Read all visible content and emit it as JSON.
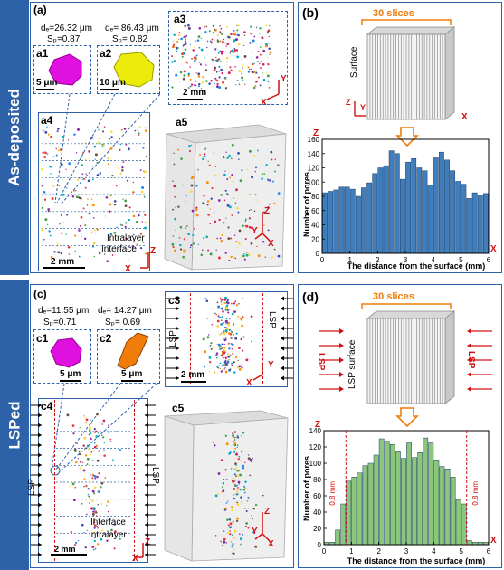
{
  "rows": {
    "top_label": "As-deposited",
    "bottom_label": "LSPed"
  },
  "panels": {
    "a": "(a)",
    "a1": "a1",
    "a2": "a2",
    "a3": "a3",
    "a4": "a4",
    "a5": "a5",
    "b": "(b)",
    "c": "(c)",
    "c1": "c1",
    "c2": "c2",
    "c3": "c3",
    "c4": "c4",
    "c5": "c5",
    "d": "(d)"
  },
  "top": {
    "a1_de": "dₑ=26.32 μm",
    "a1_sp": "Sₚ=0.87",
    "a2_de": "dₑ= 86.43 μm",
    "a2_sp": "Sₚ= 0.82",
    "a1_scale": "5 μm",
    "a2_scale": "10 μm",
    "a3_scale": "2 mm",
    "a4_scale": "2 mm",
    "intralayer": "Intralayer",
    "interface": "Interface",
    "slices": "30 slices",
    "surface": "Surface"
  },
  "bottom": {
    "c1_de": "dₑ=11.55 μm",
    "c1_sp": "Sₚ=0.71",
    "c2_de": "dₑ= 14.27 μm",
    "c2_sp": "Sₚ= 0.69",
    "c1_scale": "5 μm",
    "c2_scale": "5 μm",
    "c3_scale": "2 mm",
    "c4_scale": "2 mm",
    "lsp": "LSP",
    "interface": "Interface",
    "intralayer": "Intralayer",
    "slices": "30 slices",
    "lsp_surface": "LSP surface",
    "ls": "LS",
    "p": "P",
    "band": "0.8 mm"
  },
  "axes": {
    "x": "X",
    "y": "Y",
    "z": "Z"
  },
  "chart_data": [
    {
      "type": "bar",
      "xlabel": "The distance from the surface (mm)",
      "ylabel": "Number of pores",
      "xlim": [
        0,
        6
      ],
      "ylim": [
        0,
        160
      ],
      "xticks": [
        0,
        1,
        2,
        3,
        4,
        5,
        6
      ],
      "yticks": [
        0,
        20,
        40,
        60,
        80,
        100,
        120,
        140,
        160
      ],
      "bin_width": 0.2,
      "values": [
        85,
        87,
        89,
        93,
        93,
        90,
        80,
        92,
        99,
        112,
        120,
        123,
        144,
        140,
        104,
        128,
        133,
        120,
        116,
        96,
        134,
        142,
        131,
        116,
        101,
        97,
        77,
        85,
        82,
        84
      ],
      "color": "#3f7dbc"
    },
    {
      "type": "bar",
      "xlabel": "The distance from the surface (mm)",
      "ylabel": "Number of pores",
      "xlim": [
        0,
        6
      ],
      "ylim": [
        0,
        140
      ],
      "xticks": [
        0,
        1,
        2,
        3,
        4,
        5,
        6
      ],
      "yticks": [
        0,
        20,
        40,
        60,
        80,
        100,
        120,
        140
      ],
      "bin_width": 0.2,
      "values": [
        3,
        3,
        18,
        50,
        78,
        83,
        88,
        97,
        100,
        110,
        130,
        127,
        123,
        114,
        106,
        125,
        107,
        113,
        131,
        125,
        104,
        96,
        93,
        83,
        55,
        50,
        5,
        3,
        3,
        3
      ],
      "color": "#8cc57c",
      "annotations": [
        "0.8 mm",
        "0.8 mm"
      ]
    }
  ]
}
